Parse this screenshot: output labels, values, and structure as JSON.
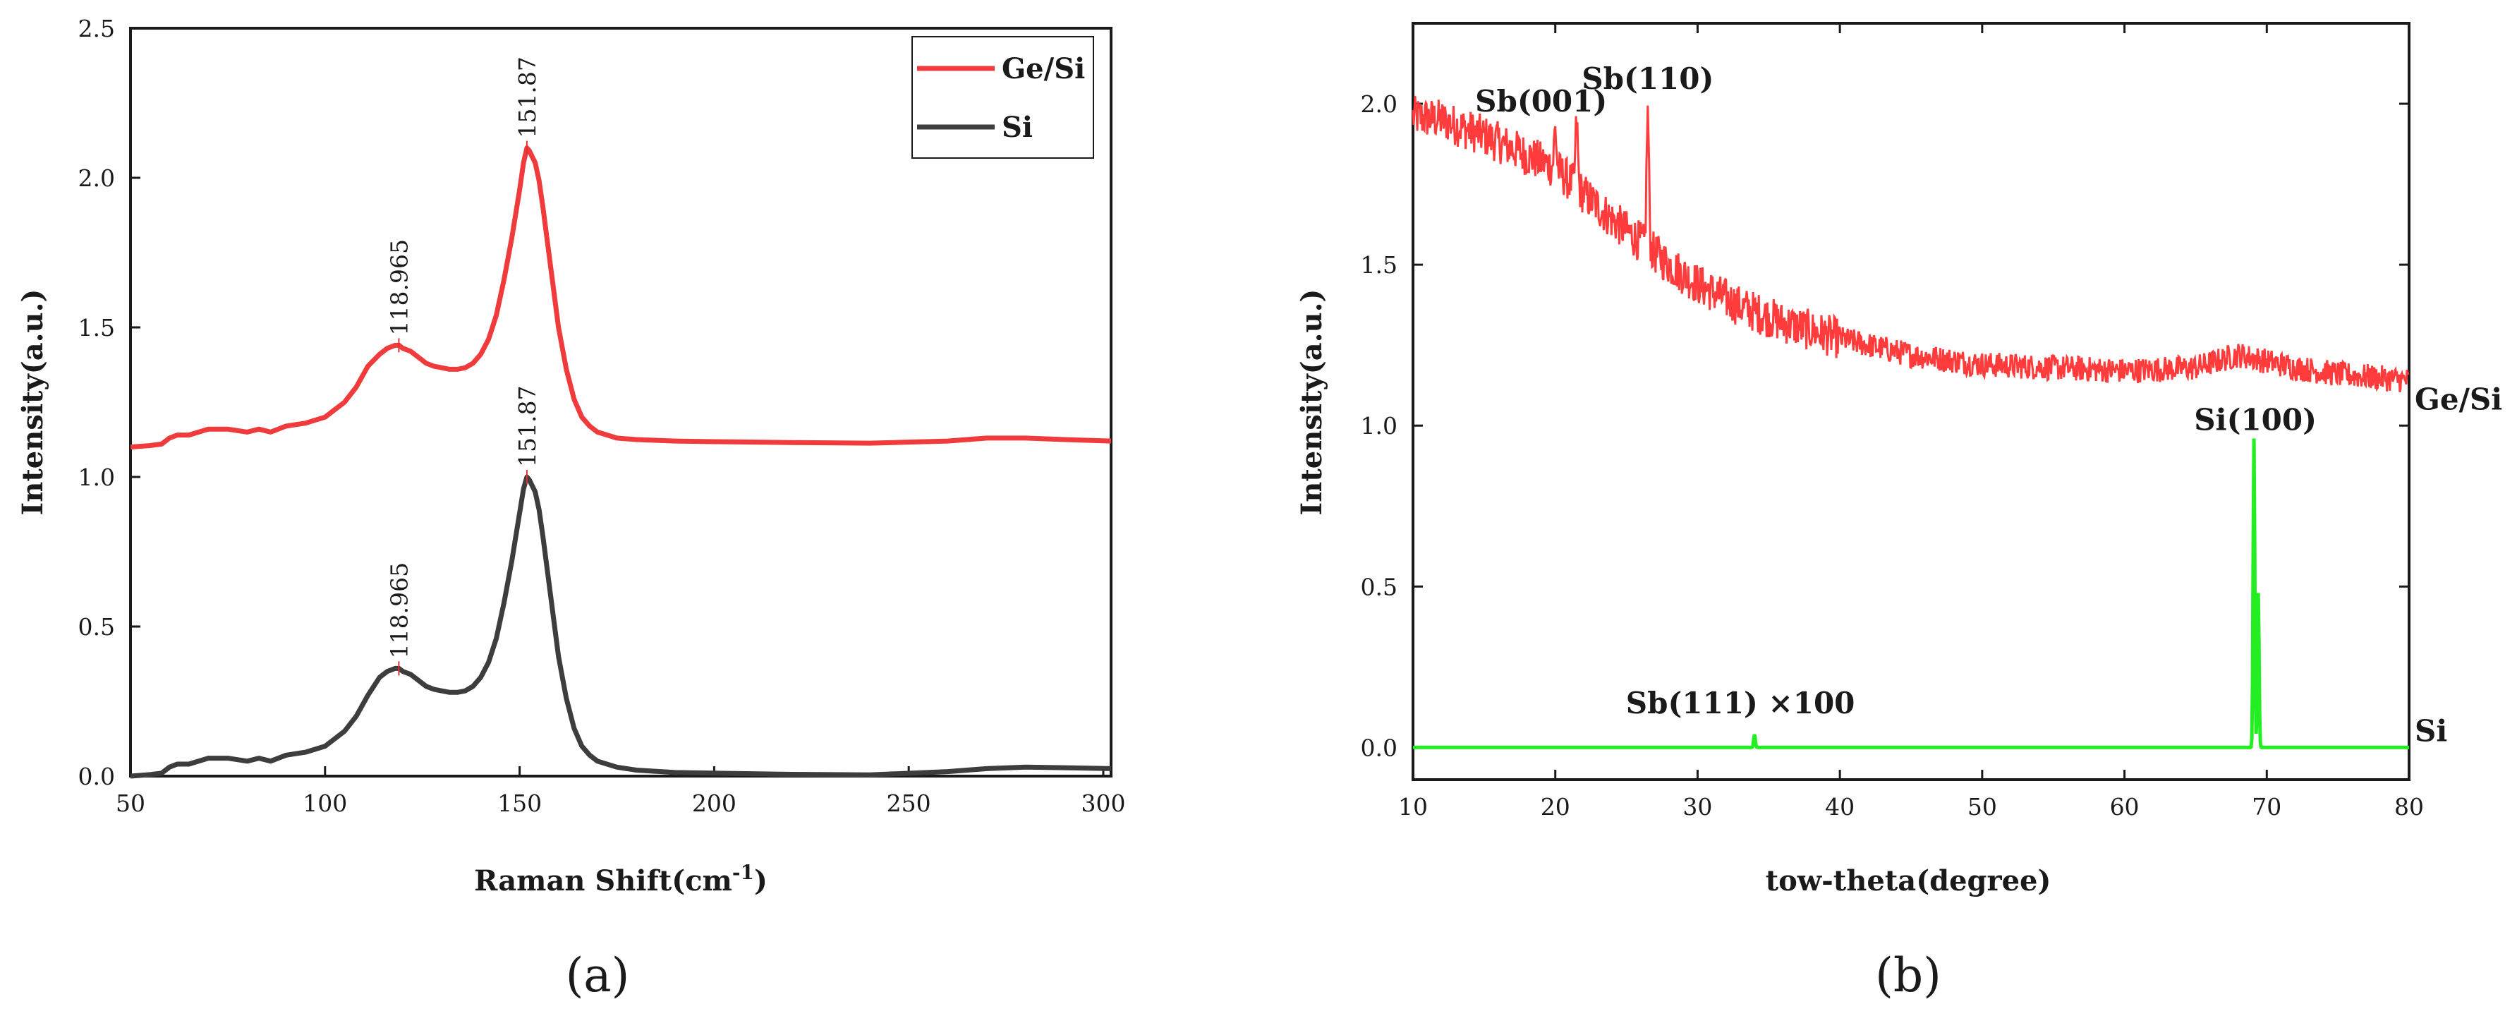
{
  "chart_data": [
    {
      "panel_label": "(a)",
      "type": "line",
      "xlabel": "Raman Shift(cm",
      "xlabel_sup": "-1",
      "xlabel_end": ")",
      "ylabel": "Intensity(a.u.)",
      "xlim": [
        50,
        302
      ],
      "ylim": [
        0,
        2.5
      ],
      "xticks": [
        50,
        100,
        150,
        200,
        250,
        300
      ],
      "yticks": [
        0.0,
        0.5,
        1.0,
        1.5,
        2.0,
        2.5
      ],
      "ytick_labels": [
        "0.0",
        "0.5",
        "1.0",
        "1.5",
        "2.0",
        "2.5"
      ],
      "legend_position": "top-right",
      "series": [
        {
          "name": "Ge/Si",
          "color": "#ef3b3b",
          "x": [
            50,
            55,
            58,
            60,
            62,
            65,
            70,
            75,
            80,
            83,
            86,
            90,
            95,
            100,
            105,
            108,
            111,
            114,
            116,
            118,
            119,
            120,
            122,
            124,
            126,
            128,
            130,
            132,
            134,
            136,
            138,
            140,
            142,
            144,
            146,
            148,
            150,
            151,
            151.87,
            152.5,
            154,
            155,
            156,
            158,
            160,
            162,
            164,
            166,
            168,
            170,
            175,
            180,
            190,
            200,
            220,
            240,
            260,
            270,
            280,
            290,
            302
          ],
          "y": [
            1.1,
            1.105,
            1.11,
            1.13,
            1.14,
            1.14,
            1.16,
            1.16,
            1.15,
            1.16,
            1.15,
            1.17,
            1.18,
            1.2,
            1.25,
            1.3,
            1.37,
            1.41,
            1.43,
            1.44,
            1.44,
            1.43,
            1.42,
            1.4,
            1.38,
            1.37,
            1.365,
            1.36,
            1.36,
            1.365,
            1.38,
            1.41,
            1.46,
            1.54,
            1.66,
            1.8,
            1.96,
            2.05,
            2.1,
            2.09,
            2.05,
            1.99,
            1.9,
            1.7,
            1.5,
            1.36,
            1.26,
            1.2,
            1.17,
            1.15,
            1.13,
            1.125,
            1.12,
            1.118,
            1.115,
            1.113,
            1.12,
            1.13,
            1.13,
            1.125,
            1.12
          ]
        },
        {
          "name": "Si",
          "color": "#3d3d3d",
          "x": [
            50,
            55,
            58,
            60,
            62,
            65,
            70,
            75,
            80,
            83,
            86,
            90,
            95,
            100,
            105,
            108,
            111,
            114,
            116,
            118,
            119,
            120,
            122,
            124,
            126,
            128,
            130,
            132,
            134,
            136,
            138,
            140,
            142,
            144,
            146,
            148,
            150,
            151,
            151.87,
            152.5,
            154,
            155,
            156,
            158,
            160,
            162,
            164,
            166,
            168,
            170,
            175,
            180,
            190,
            200,
            220,
            240,
            260,
            270,
            280,
            290,
            302
          ],
          "y": [
            0.0,
            0.005,
            0.01,
            0.03,
            0.04,
            0.04,
            0.06,
            0.06,
            0.05,
            0.06,
            0.05,
            0.07,
            0.08,
            0.1,
            0.15,
            0.2,
            0.27,
            0.33,
            0.35,
            0.36,
            0.36,
            0.35,
            0.34,
            0.32,
            0.3,
            0.29,
            0.285,
            0.28,
            0.28,
            0.285,
            0.3,
            0.33,
            0.38,
            0.46,
            0.58,
            0.72,
            0.88,
            0.96,
            1.0,
            0.99,
            0.95,
            0.89,
            0.8,
            0.6,
            0.4,
            0.26,
            0.16,
            0.1,
            0.07,
            0.05,
            0.03,
            0.02,
            0.012,
            0.01,
            0.006,
            0.004,
            0.015,
            0.025,
            0.03,
            0.028,
            0.025
          ]
        }
      ],
      "annotations": [
        {
          "text": "118.965",
          "x": 118.965,
          "y": 1.44
        },
        {
          "text": "151.87",
          "x": 151.87,
          "y": 2.1
        },
        {
          "text": "118.965",
          "x": 118.965,
          "y": 0.36
        },
        {
          "text": "151.87",
          "x": 151.87,
          "y": 1.0
        }
      ]
    },
    {
      "panel_label": "(b)",
      "type": "line",
      "xlabel": "tow-theta(degree)",
      "ylabel": "Intensity(a.u.)",
      "xlim": [
        10,
        80
      ],
      "ylim": [
        -0.1,
        2.25
      ],
      "xticks": [
        10,
        20,
        30,
        40,
        50,
        60,
        70,
        80
      ],
      "yticks": [
        0.0,
        0.5,
        1.0,
        1.5,
        2.0
      ],
      "ytick_labels": [
        "0.0",
        "0.5",
        "1.0",
        "1.5",
        "2.0"
      ],
      "series": [
        {
          "name": "Ge/Si",
          "color": "#ff3b3b",
          "trend_x": [
            10,
            12,
            15,
            18,
            20,
            22,
            24,
            26,
            28,
            30,
            33,
            36,
            40,
            45,
            50,
            55,
            60,
            65,
            68,
            70,
            72,
            75,
            80
          ],
          "trend_y": [
            1.96,
            1.95,
            1.9,
            1.84,
            1.8,
            1.72,
            1.64,
            1.57,
            1.5,
            1.44,
            1.37,
            1.32,
            1.27,
            1.22,
            1.19,
            1.18,
            1.17,
            1.18,
            1.22,
            1.2,
            1.18,
            1.16,
            1.14
          ],
          "noise_amplitude": 0.05,
          "peaks": [
            {
              "x": 20,
              "height": 0.12
            },
            {
              "x": 21.5,
              "height": 0.2
            },
            {
              "x": 26.5,
              "height": 0.42
            }
          ]
        },
        {
          "name": "Si",
          "color": "#22ee22",
          "baseline": 0.0,
          "peaks": [
            {
              "x": 34.0,
              "height": 0.04
            },
            {
              "x": 69.1,
              "height": 0.96
            },
            {
              "x": 69.4,
              "height": 0.48
            }
          ]
        }
      ],
      "annotations": [
        {
          "text": "Sb(001)",
          "x": 20,
          "y": 1.95
        },
        {
          "text": "Sb(110)",
          "x": 26.5,
          "y": 2.02
        },
        {
          "text": "Si(100)",
          "x": 69.2,
          "y": 0.96
        },
        {
          "text": "Sb(111) ×100",
          "x": 34,
          "y": 0.08
        }
      ],
      "end_labels": [
        {
          "text": "Ge/Si",
          "y": 1.05
        },
        {
          "text": "Si",
          "y": 0.02
        }
      ]
    }
  ]
}
